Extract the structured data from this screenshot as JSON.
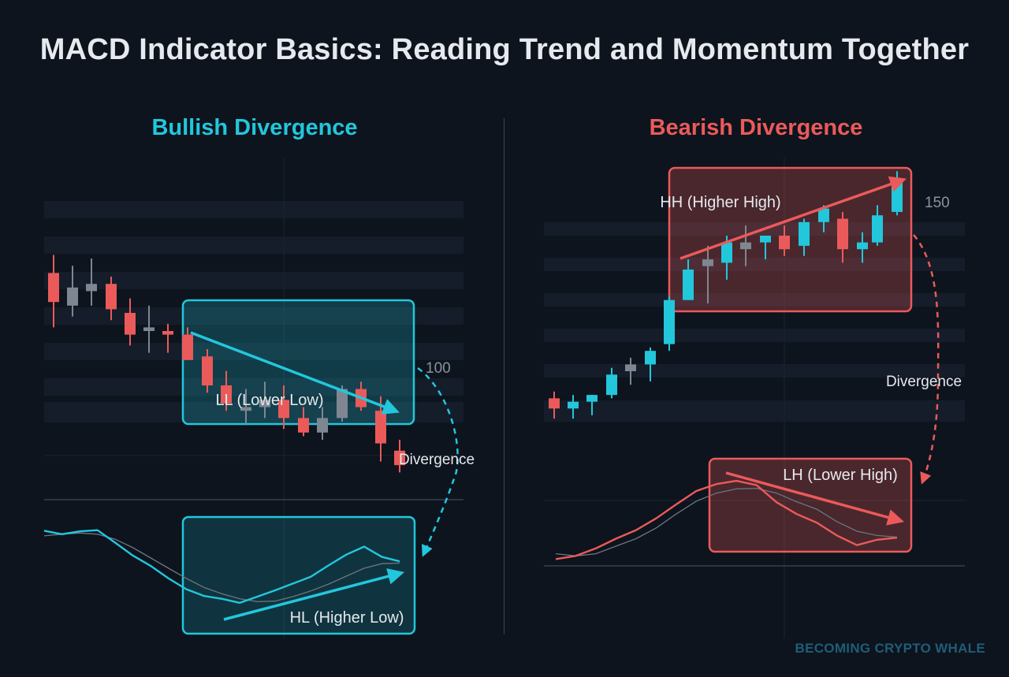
{
  "title": "MACD Indicator Basics: Reading Trend and Momentum Together",
  "watermark": "BECOMING CRYPTO WHALE",
  "colors": {
    "bullish": "#22c7dc",
    "bearish": "#eb5a5a",
    "neutral": "#7e8791",
    "background": "#0d141d"
  },
  "chart_data": [
    {
      "type": "candlestick",
      "title": "Bullish Divergence",
      "price_label": "100",
      "price_annotation": "LL (Lower Low)",
      "macd_annotation": "HL (Higher Low)",
      "divergence_label": "Divergence",
      "candles": [
        {
          "o": 126,
          "h": 131,
          "l": 111,
          "c": 118,
          "dir": "down"
        },
        {
          "o": 117,
          "h": 128,
          "l": 114,
          "c": 122,
          "dir": "neutral"
        },
        {
          "o": 123,
          "h": 130,
          "l": 117,
          "c": 121,
          "dir": "neutral"
        },
        {
          "o": 123,
          "h": 125,
          "l": 113,
          "c": 116,
          "dir": "down"
        },
        {
          "o": 115,
          "h": 119,
          "l": 106,
          "c": 109,
          "dir": "down"
        },
        {
          "o": 111,
          "h": 117,
          "l": 104,
          "c": 110,
          "dir": "neutral"
        },
        {
          "o": 110,
          "h": 112,
          "l": 104,
          "c": 109,
          "dir": "down"
        },
        {
          "o": 109,
          "h": 111,
          "l": 102,
          "c": 102,
          "dir": "down"
        },
        {
          "o": 103,
          "h": 105,
          "l": 93,
          "c": 95,
          "dir": "down"
        },
        {
          "o": 95,
          "h": 99,
          "l": 88,
          "c": 90,
          "dir": "down"
        },
        {
          "o": 89,
          "h": 94,
          "l": 84,
          "c": 88,
          "dir": "neutral"
        },
        {
          "o": 89,
          "h": 96,
          "l": 86,
          "c": 91,
          "dir": "neutral"
        },
        {
          "o": 91,
          "h": 95,
          "l": 83,
          "c": 86,
          "dir": "down"
        },
        {
          "o": 86,
          "h": 89,
          "l": 81,
          "c": 82,
          "dir": "down"
        },
        {
          "o": 82,
          "h": 89,
          "l": 80,
          "c": 86,
          "dir": "neutral"
        },
        {
          "o": 86,
          "h": 95,
          "l": 85,
          "c": 94,
          "dir": "neutral"
        },
        {
          "o": 94,
          "h": 96,
          "l": 88,
          "c": 89,
          "dir": "down"
        },
        {
          "o": 88,
          "h": 92,
          "l": 74,
          "c": 79,
          "dir": "down"
        },
        {
          "o": 77,
          "h": 80,
          "l": 71,
          "c": 73,
          "dir": "down"
        }
      ],
      "macd_line": [
        -0.2,
        -0.8,
        -0.3,
        -0.1,
        -2.3,
        -4.6,
        -6.4,
        -8.6,
        -10.5,
        -11.7,
        -12.2,
        -12.9,
        -11.8,
        -10.7,
        -9.5,
        -8.3,
        -6.3,
        -4.4,
        -3.0,
        -4.8,
        -5.6
      ],
      "signal_line": [
        -1.1,
        -0.8,
        -0.6,
        -0.8,
        -1.7,
        -3.2,
        -5.0,
        -6.8,
        -8.6,
        -10.2,
        -11.3,
        -12.2,
        -12.7,
        -12.6,
        -11.8,
        -10.8,
        -9.6,
        -8.2,
        -6.8,
        -6.0,
        -5.9
      ]
    },
    {
      "type": "candlestick",
      "title": "Bearish Divergence",
      "price_label": "150",
      "price_annotation": "HH (Higher High)",
      "macd_annotation": "LH (Lower High)",
      "divergence_label": "Divergence",
      "candles": [
        {
          "o": 92,
          "h": 94,
          "l": 86,
          "c": 89,
          "dir": "down"
        },
        {
          "o": 89,
          "h": 93,
          "l": 86,
          "c": 91,
          "dir": "up"
        },
        {
          "o": 91,
          "h": 93,
          "l": 87,
          "c": 93,
          "dir": "up"
        },
        {
          "o": 93,
          "h": 101,
          "l": 92,
          "c": 99,
          "dir": "up"
        },
        {
          "o": 100,
          "h": 104,
          "l": 96,
          "c": 102,
          "dir": "neutral"
        },
        {
          "o": 102,
          "h": 107,
          "l": 97,
          "c": 106,
          "dir": "up"
        },
        {
          "o": 108,
          "h": 122,
          "l": 106,
          "c": 121,
          "dir": "up"
        },
        {
          "o": 121,
          "h": 133,
          "l": 121,
          "c": 130,
          "dir": "up"
        },
        {
          "o": 131,
          "h": 137,
          "l": 120,
          "c": 133,
          "dir": "neutral"
        },
        {
          "o": 132,
          "h": 140,
          "l": 127,
          "c": 138,
          "dir": "up"
        },
        {
          "o": 136,
          "h": 143,
          "l": 131,
          "c": 138,
          "dir": "neutral"
        },
        {
          "o": 138,
          "h": 140,
          "l": 133,
          "c": 140,
          "dir": "up"
        },
        {
          "o": 140,
          "h": 143,
          "l": 134,
          "c": 136,
          "dir": "down"
        },
        {
          "o": 137,
          "h": 145,
          "l": 134,
          "c": 144,
          "dir": "up"
        },
        {
          "o": 144,
          "h": 149,
          "l": 141,
          "c": 148,
          "dir": "up"
        },
        {
          "o": 145,
          "h": 147,
          "l": 132,
          "c": 136,
          "dir": "down"
        },
        {
          "o": 136,
          "h": 141,
          "l": 132,
          "c": 138,
          "dir": "up"
        },
        {
          "o": 138,
          "h": 149,
          "l": 137,
          "c": 146,
          "dir": "up"
        },
        {
          "o": 147,
          "h": 159,
          "l": 146,
          "c": 156,
          "dir": "up"
        }
      ],
      "macd_line": [
        -0.2,
        0.4,
        1.8,
        3.6,
        5.2,
        7.4,
        10.0,
        12.5,
        13.8,
        14.4,
        13.6,
        10.4,
        8.2,
        6.6,
        4.2,
        2.4,
        3.4,
        3.8
      ],
      "signal_line": [
        0.8,
        0.4,
        0.8,
        2.2,
        3.6,
        5.6,
        8.2,
        10.6,
        12.1,
        12.9,
        13.0,
        12.1,
        10.5,
        9.1,
        6.8,
        5.0,
        4.2,
        3.9
      ]
    }
  ]
}
